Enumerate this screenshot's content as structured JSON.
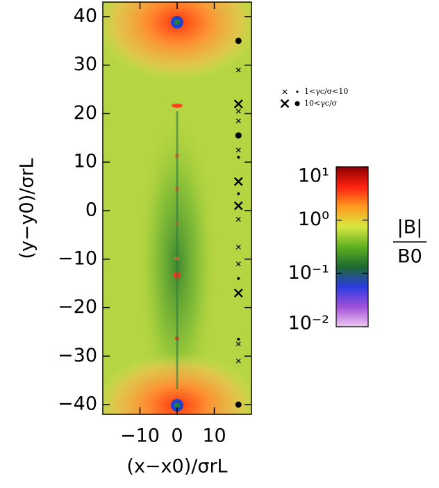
{
  "chart_data": {
    "type": "heatmap",
    "xlabel": "(x−x0)/σrL",
    "ylabel": "(y−y0)/σrL",
    "xlim": [
      -20,
      20
    ],
    "ylim": [
      -42,
      43
    ],
    "xticks": [
      {
        "value": -10,
        "label": "−10"
      },
      0,
      10
    ],
    "yticks": [
      {
        "value": -40,
        "label": "−40"
      },
      {
        "value": -30,
        "label": "−30"
      },
      {
        "value": -20,
        "label": "−20"
      },
      {
        "value": -10,
        "label": "−10"
      },
      0,
      10,
      20,
      30,
      40
    ],
    "marker_x": 16.5,
    "marker_groups": [
      {
        "label": "1<γc/σ<10",
        "cross": [
          29,
          20.5,
          18.5,
          12.5,
          -1.8,
          -7.5,
          -11,
          -27.5,
          -31
        ],
        "dot": [
          11,
          3.5,
          -14,
          -26.5
        ]
      },
      {
        "label": "10<γc/σ",
        "cross": [
          22,
          6,
          1,
          -17
        ],
        "dot": [
          35,
          15.5,
          -40
        ]
      }
    ],
    "colorbar": {
      "scale": "log",
      "lim": [
        0.01,
        10
      ],
      "ticks": [
        {
          "value": 10,
          "label": "10¹"
        },
        {
          "value": 1,
          "label": "10⁰"
        },
        {
          "value": 0.1,
          "label": "10⁻¹"
        },
        {
          "value": 0.01,
          "label": "10⁻²"
        }
      ],
      "colors": [
        "#8a0000",
        "#ff2010",
        "#ff9a20",
        "#d8e840",
        "#60b020",
        "#1e6a30",
        "#2a3ce0",
        "#a050d8",
        "#f0c8f0"
      ],
      "label_numerator": "|B|",
      "label_denominator": "B0"
    }
  }
}
